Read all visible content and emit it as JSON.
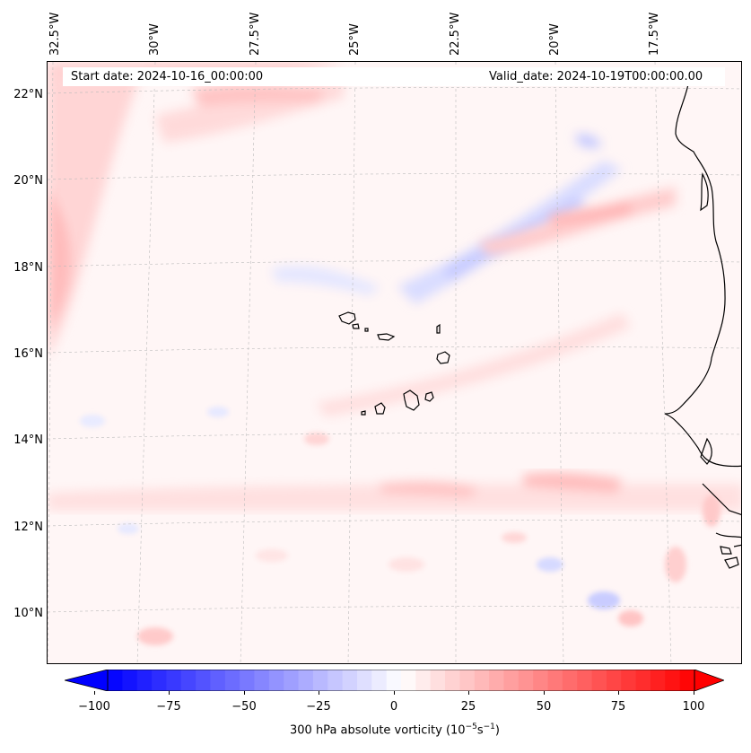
{
  "map": {
    "start_date": "Start date: 2024-10-16_00:00:00",
    "valid_date": "Valid_date: 2024-10-19T00:00:00.00",
    "lon_labels": [
      "32.5°W",
      "30°W",
      "27.5°W",
      "25°W",
      "22.5°W",
      "20°W",
      "17.5°W"
    ],
    "lat_labels": [
      "22°N",
      "20°N",
      "18°N",
      "16°N",
      "14°N",
      "12°N",
      "10°N"
    ],
    "colorbar": {
      "label_prefix": "300 hPa absolute vorticity (10",
      "label_sup1": "−5",
      "label_mid": "s",
      "label_sup2": "−1",
      "label_suffix": ")",
      "ticks": [
        "−100",
        "−75",
        "−50",
        "−25",
        "0",
        "25",
        "50",
        "75",
        "100"
      ],
      "min": -100,
      "max": 100
    },
    "colors": {
      "negative": "#0000ff",
      "positive": "#ff0000",
      "coast": "#000000"
    }
  }
}
